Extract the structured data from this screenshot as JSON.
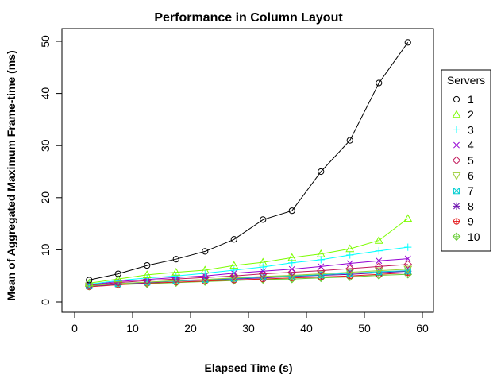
{
  "chart_data": {
    "type": "line",
    "title": "Performance in Column Layout",
    "xlabel": "Elapsed Time (s)",
    "ylabel": "Mean of Aggregated Maximum Frame-time (ms)",
    "xlim": [
      0,
      60
    ],
    "ylim": [
      0,
      50
    ],
    "x_ticks": [
      0,
      10,
      20,
      30,
      40,
      50,
      60
    ],
    "y_ticks": [
      0,
      10,
      20,
      30,
      40,
      50
    ],
    "grid": false,
    "legend": {
      "title": "Servers",
      "placement": "right"
    },
    "x": [
      2.5,
      7.5,
      12.5,
      17.5,
      22.5,
      27.5,
      32.5,
      37.5,
      42.5,
      47.5,
      52.5,
      57.5
    ],
    "series": [
      {
        "name": "1",
        "color": "#000000",
        "marker": "circle",
        "values": [
          4.2,
          5.4,
          7.0,
          8.2,
          9.7,
          12.0,
          15.8,
          17.5,
          25.0,
          31.0,
          42.0,
          49.8
        ]
      },
      {
        "name": "2",
        "color": "#7CFC00",
        "marker": "triangle-up",
        "values": [
          3.6,
          4.4,
          5.2,
          5.7,
          6.1,
          7.0,
          7.6,
          8.5,
          9.2,
          10.2,
          11.8,
          16.0
        ]
      },
      {
        "name": "3",
        "color": "#00FFFF",
        "marker": "plus",
        "values": [
          3.4,
          4.1,
          4.6,
          5.0,
          5.5,
          6.1,
          6.7,
          7.5,
          8.1,
          9.0,
          9.8,
          10.5
        ]
      },
      {
        "name": "4",
        "color": "#9400D3",
        "marker": "x",
        "values": [
          3.3,
          3.9,
          4.3,
          4.7,
          5.0,
          5.5,
          5.9,
          6.3,
          6.8,
          7.4,
          7.9,
          8.3
        ]
      },
      {
        "name": "5",
        "color": "#C2185B",
        "marker": "diamond",
        "values": [
          3.2,
          3.7,
          4.1,
          4.4,
          4.7,
          5.0,
          5.4,
          5.7,
          6.0,
          6.4,
          6.8,
          7.2
        ]
      },
      {
        "name": "6",
        "color": "#9ACD32",
        "marker": "triangle-down",
        "values": [
          3.1,
          3.5,
          3.8,
          4.1,
          4.3,
          4.6,
          4.9,
          5.1,
          5.4,
          5.7,
          6.0,
          6.3
        ]
      },
      {
        "name": "7",
        "color": "#00CED1",
        "marker": "square-x",
        "values": [
          3.1,
          3.5,
          3.8,
          4.0,
          4.3,
          4.5,
          4.8,
          5.0,
          5.2,
          5.5,
          5.8,
          6.0
        ]
      },
      {
        "name": "8",
        "color": "#6A0DAD",
        "marker": "asterisk",
        "values": [
          3.0,
          3.4,
          3.7,
          4.0,
          4.2,
          4.4,
          4.6,
          4.9,
          5.1,
          5.3,
          5.6,
          5.9
        ]
      },
      {
        "name": "9",
        "color": "#E41A1C",
        "marker": "circle-plus",
        "values": [
          2.9,
          3.3,
          3.6,
          3.8,
          4.0,
          4.2,
          4.4,
          4.6,
          4.8,
          5.0,
          5.3,
          5.6
        ]
      },
      {
        "name": "10",
        "color": "#66CC33",
        "marker": "diamond-plus",
        "values": [
          3.0,
          3.3,
          3.5,
          3.7,
          3.9,
          4.1,
          4.3,
          4.4,
          4.6,
          4.8,
          5.1,
          5.3
        ]
      }
    ]
  }
}
